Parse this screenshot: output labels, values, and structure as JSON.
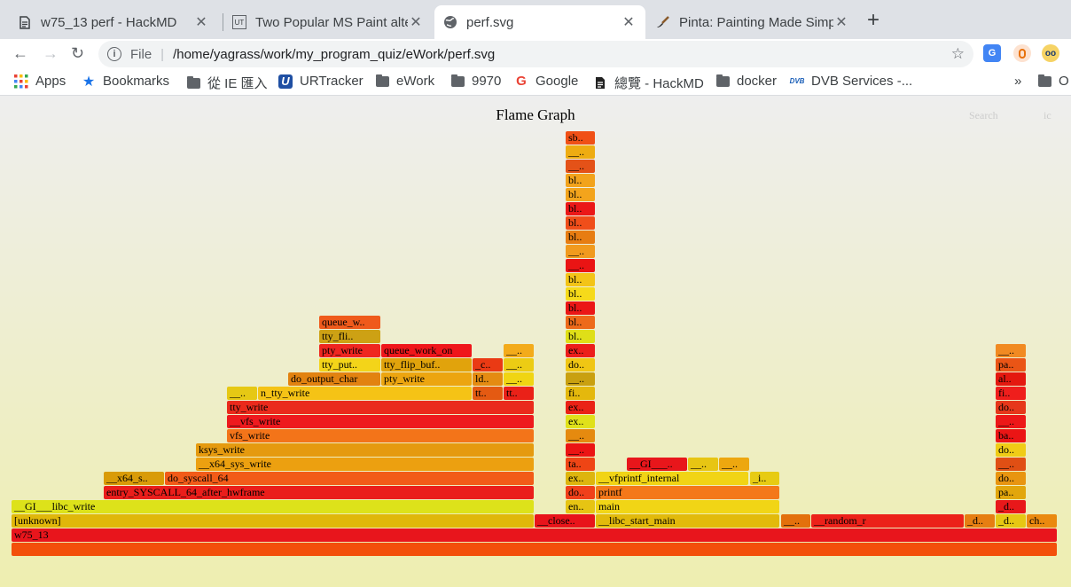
{
  "tabs": [
    {
      "title": "w75_13 perf - HackMD",
      "icon": "document-icon"
    },
    {
      "title": "Two Popular MS Paint alte",
      "icon": "ut-icon",
      "icon_text": "UT"
    },
    {
      "title": "perf.svg",
      "icon": "globe-icon"
    },
    {
      "title": "Pinta: Painting Made Simp",
      "icon": "paintbrush-icon"
    }
  ],
  "toolbar": {
    "file_label": "File",
    "url": "/home/yagrass/work/my_program_quiz/eWork/perf.svg"
  },
  "bookmarks": [
    {
      "label": "Apps",
      "icon": "apps-grid-icon"
    },
    {
      "label": "Bookmarks",
      "icon": "star-icon"
    },
    {
      "label": "從 IE 匯入",
      "icon": "folder-icon"
    },
    {
      "label": "URTracker",
      "icon": "urtracker-icon",
      "icon_text": "U"
    },
    {
      "label": "eWork",
      "icon": "folder-icon"
    },
    {
      "label": "9970",
      "icon": "folder-icon"
    },
    {
      "label": "Google",
      "icon": "google-icon",
      "icon_text": "G"
    },
    {
      "label": "總覽 - HackMD",
      "icon": "document-icon"
    },
    {
      "label": "docker",
      "icon": "folder-icon"
    },
    {
      "label": "DVB Services -...",
      "icon": "dvb-icon",
      "icon_text": "DVB"
    }
  ],
  "bookmarks_more": "»",
  "bookmarks_overflow": "O",
  "flamegraph": {
    "title": "Flame Graph",
    "search_label": "Search",
    "ic_label": "ic",
    "frames": [
      {
        "t": "",
        "c": "#f34f0a"
      },
      {
        "t": "w75_13",
        "c": "#e8151c"
      },
      {
        "t": "[unknown]",
        "c": "#e0b70a"
      },
      {
        "t": "__close..",
        "c": "#e8141a"
      },
      {
        "t": "__libc_start_main",
        "c": "#e2ba0b"
      },
      {
        "t": "__..",
        "c": "#e3700c"
      },
      {
        "t": "__random_r",
        "c": "#ec2119"
      },
      {
        "t": "_d..",
        "c": "#e67e12"
      },
      {
        "t": "_d..",
        "c": "#e6c813"
      },
      {
        "t": "ch..",
        "c": "#ea890f"
      },
      {
        "t": "__GI___libc_write",
        "c": "#dde21a"
      },
      {
        "t": "en..",
        "c": "#e6c413"
      },
      {
        "t": "main",
        "c": "#f1d516"
      },
      {
        "t": "_d..",
        "c": "#e8181a"
      },
      {
        "t": "entry_SYSCALL_64_after_hwframe",
        "c": "#ea1e1b"
      },
      {
        "t": "do..",
        "c": "#f0401a"
      },
      {
        "t": "printf",
        "c": "#f4781a"
      },
      {
        "t": "pa..",
        "c": "#e2a60c"
      },
      {
        "t": "__x64_s..",
        "c": "#d99b08"
      },
      {
        "t": "do_syscall_64",
        "c": "#f25b18"
      },
      {
        "t": "ex..",
        "c": "#ddb50e"
      },
      {
        "t": "__vfprintf_internal",
        "c": "#f1d415"
      },
      {
        "t": "_i..",
        "c": "#e7cb13"
      },
      {
        "t": "do..",
        "c": "#e89510"
      },
      {
        "t": "__x64_sys_write",
        "c": "#eca010"
      },
      {
        "t": "ta..",
        "c": "#ef4515"
      },
      {
        "t": "__GI___..",
        "c": "#e8161b"
      },
      {
        "t": "__..",
        "c": "#e7c513"
      },
      {
        "t": "__..",
        "c": "#eda70f"
      },
      {
        "t": "__..",
        "c": "#e04f14"
      },
      {
        "t": "ksys_write",
        "c": "#e59a0f"
      },
      {
        "t": "__..",
        "c": "#eb1414"
      },
      {
        "t": "do..",
        "c": "#f0cc16"
      },
      {
        "t": "vfs_write",
        "c": "#f37419"
      },
      {
        "t": "__..",
        "c": "#e58a0f"
      },
      {
        "t": "ba..",
        "c": "#eb1515"
      },
      {
        "t": "__vfs_write",
        "c": "#ee1a1e"
      },
      {
        "t": "ex..",
        "c": "#e0e11a"
      },
      {
        "t": "__..",
        "c": "#ed1818"
      },
      {
        "t": "tty_write",
        "c": "#ea2a1c"
      },
      {
        "t": "ex..",
        "c": "#ea2216"
      },
      {
        "t": "do..",
        "c": "#e6371a"
      },
      {
        "t": "__..",
        "c": "#e6c814"
      },
      {
        "t": "n_tty_write",
        "c": "#f5c316"
      },
      {
        "t": "tt..",
        "c": "#e45a12"
      },
      {
        "t": "tt..",
        "c": "#ea2118"
      },
      {
        "t": "fi..",
        "c": "#e4b80d"
      },
      {
        "t": "fi..",
        "c": "#ef1e1c"
      },
      {
        "t": "do_output_char",
        "c": "#e28210"
      },
      {
        "t": "pty_write",
        "c": "#eca510"
      },
      {
        "t": "ld..",
        "c": "#e48b12"
      },
      {
        "t": "__..",
        "c": "#f0d513"
      },
      {
        "t": "__..",
        "c": "#c9a010"
      },
      {
        "t": "al..",
        "c": "#e4180f"
      },
      {
        "t": "tty_put..",
        "c": "#f3d419"
      },
      {
        "t": "tty_flip_buf..",
        "c": "#e1a30c"
      },
      {
        "t": "_c..",
        "c": "#ea3a14"
      },
      {
        "t": "__..",
        "c": "#eccc14"
      },
      {
        "t": "do..",
        "c": "#f0c614"
      },
      {
        "t": "pa..",
        "c": "#ea5516"
      },
      {
        "t": "pty_write",
        "c": "#ef2620"
      },
      {
        "t": "queue_work_on",
        "c": "#ef161b"
      },
      {
        "t": "__..",
        "c": "#f3ab1b"
      },
      {
        "t": "ex..",
        "c": "#ec1e1b"
      },
      {
        "t": "__..",
        "c": "#f18a22"
      },
      {
        "t": "tty_fli..",
        "c": "#cda114"
      },
      {
        "t": "bl..",
        "c": "#dfdf18"
      },
      {
        "t": "queue_w..",
        "c": "#ef5a1b"
      },
      {
        "t": "bl..",
        "c": "#ed6a1a"
      },
      {
        "t": "bl..",
        "c": "#eb1616"
      },
      {
        "t": "bl..",
        "c": "#f6da1a"
      },
      {
        "t": "bl..",
        "c": "#f3c417"
      },
      {
        "t": "__..",
        "c": "#ea1414"
      },
      {
        "t": "__..",
        "c": "#f19a1e"
      },
      {
        "t": "bl..",
        "c": "#e77d12"
      },
      {
        "t": "bl..",
        "c": "#f04e1a"
      },
      {
        "t": "bl..",
        "c": "#eb1818"
      },
      {
        "t": "bl..",
        "c": "#f3a41c"
      },
      {
        "t": "bl..",
        "c": "#f2a31c"
      },
      {
        "t": "__..",
        "c": "#e45218"
      },
      {
        "t": "__..",
        "c": "#eeac12"
      },
      {
        "t": "sb..",
        "c": "#f05016"
      }
    ]
  }
}
